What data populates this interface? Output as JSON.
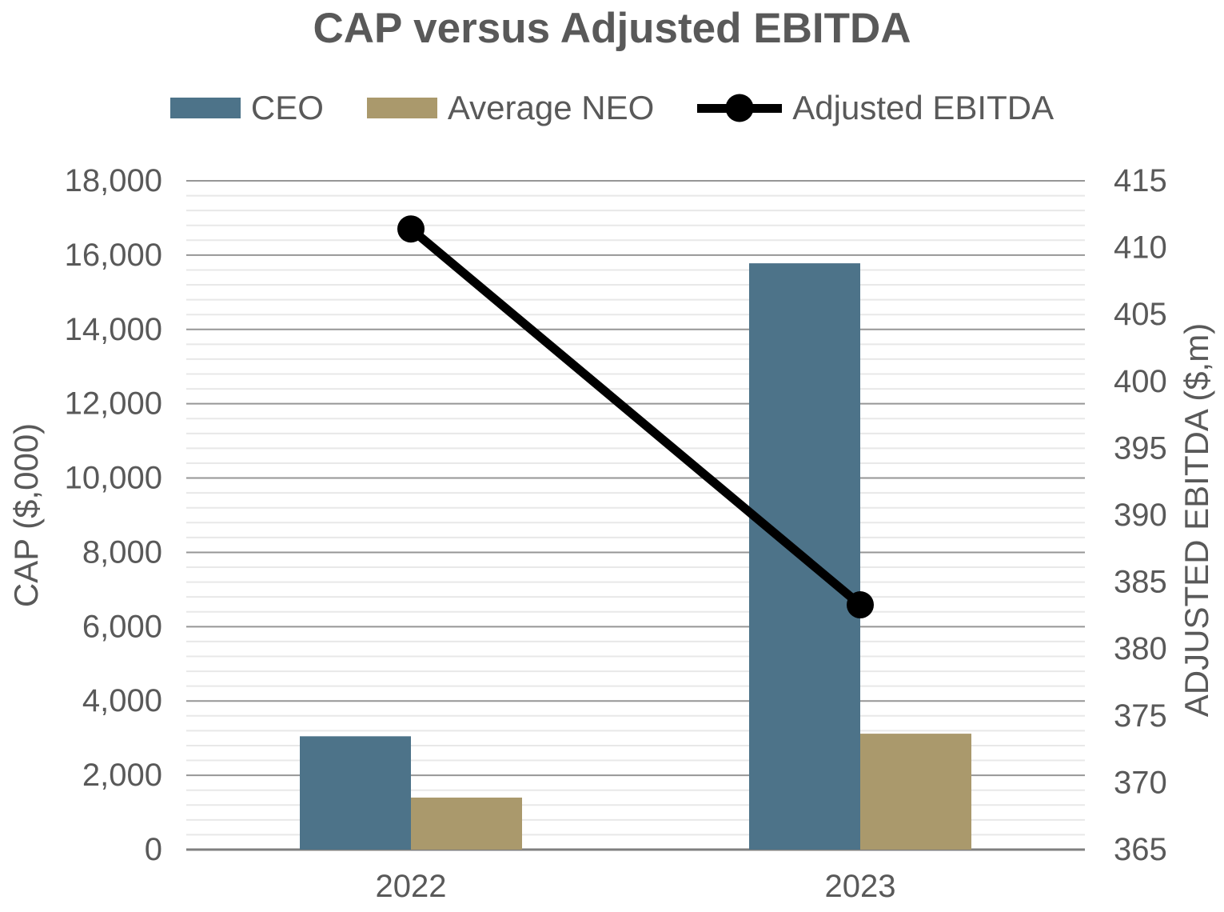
{
  "chart_data": {
    "type": "combo-bar-line",
    "title": "CAP versus Adjusted EBITDA",
    "categories": [
      "2022",
      "2023"
    ],
    "series": [
      {
        "name": "CEO",
        "type": "bar",
        "axis": "left",
        "color": "#4D7389",
        "values": [
          3050,
          15780
        ]
      },
      {
        "name": "Average NEO",
        "type": "bar",
        "axis": "left",
        "color": "#AA996C",
        "values": [
          1400,
          3120
        ]
      },
      {
        "name": "Adjusted EBITDA",
        "type": "line",
        "axis": "right",
        "color": "#000000",
        "values": [
          411.4,
          383.3
        ]
      }
    ],
    "left_axis": {
      "label": "CAP ($,000)",
      "min": 0,
      "max": 18000,
      "major_step": 2000,
      "minor_step": 400,
      "ticks": [
        "0",
        "2,000",
        "4,000",
        "6,000",
        "8,000",
        "10,000",
        "12,000",
        "14,000",
        "16,000",
        "18,000"
      ]
    },
    "right_axis": {
      "label": "ADJUSTED EBITDA ($,m)",
      "min": 365,
      "max": 415,
      "major_step": 5,
      "ticks": [
        "365",
        "370",
        "375",
        "380",
        "385",
        "390",
        "395",
        "400",
        "405",
        "410",
        "415"
      ]
    },
    "legend_position": "top",
    "gridlines": {
      "major": true,
      "minor": true
    },
    "colors": {
      "text": "#595959",
      "major_grid": "#969696",
      "minor_grid": "#e8e8e8",
      "baseline": "#7f7f7f"
    }
  }
}
